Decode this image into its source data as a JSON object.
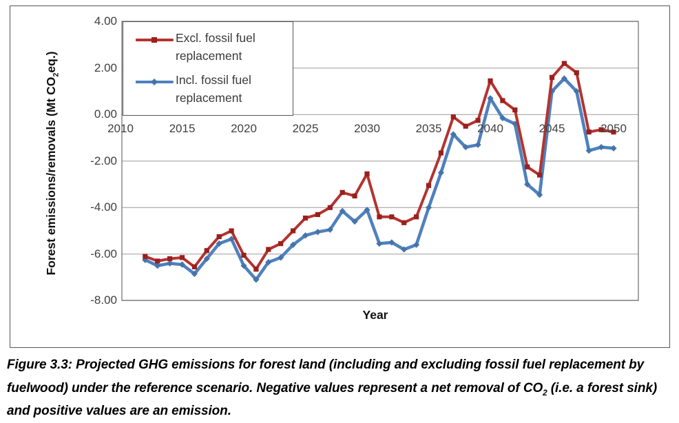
{
  "caption": {
    "pre": "Figure 3.3: Projected GHG emissions for forest land (including and excluding fossil fuel replacement by fuelwood) under the reference scenario. Negative values represent a net removal of CO",
    "sub": "2",
    "post": " (i.e. a forest sink) and positive values are an emission."
  },
  "chart_data": {
    "type": "line",
    "title": "",
    "xlabel": "Year",
    "ylabel_parts": {
      "pre": "Forest emissions/removals (Mt CO",
      "sub": "2",
      "post": "eq.)"
    },
    "xlim": [
      2010,
      2050
    ],
    "ylim": [
      -8,
      4
    ],
    "grid": "horizontal",
    "legend_position": "top-left-inside",
    "yticks": {
      "values": [
        4,
        2,
        0,
        -2,
        -4,
        -6,
        -8
      ],
      "labels": [
        "4.00",
        "2.00",
        "0.00",
        "-2.00",
        "-4.00",
        "-6.00",
        "-8.00"
      ]
    },
    "xticks": {
      "values": [
        2010,
        2015,
        2020,
        2025,
        2030,
        2035,
        2040,
        2045,
        2050
      ],
      "labels": [
        "2010",
        "2015",
        "2020",
        "2025",
        "2030",
        "2035",
        "2040",
        "2045",
        "2050"
      ]
    },
    "x": [
      2012,
      2013,
      2014,
      2015,
      2016,
      2017,
      2018,
      2019,
      2020,
      2021,
      2022,
      2023,
      2024,
      2025,
      2026,
      2027,
      2028,
      2029,
      2030,
      2031,
      2032,
      2033,
      2034,
      2035,
      2036,
      2037,
      2038,
      2039,
      2040,
      2041,
      2042,
      2043,
      2044,
      2045,
      2046,
      2047,
      2048,
      2049,
      2050
    ],
    "series": [
      {
        "name": "Excl. fossil fuel replacement",
        "color": "#b43330",
        "marker_color": "#9a201c",
        "marker": "square",
        "values": [
          -6.1,
          -6.3,
          -6.2,
          -6.15,
          -6.55,
          -5.85,
          -5.25,
          -5.0,
          -6.05,
          -6.65,
          -5.8,
          -5.55,
          -5.0,
          -4.45,
          -4.3,
          -4.0,
          -3.35,
          -3.5,
          -2.55,
          -4.4,
          -4.4,
          -4.65,
          -4.4,
          -3.05,
          -1.65,
          -0.1,
          -0.5,
          -0.25,
          1.45,
          0.6,
          0.2,
          -2.25,
          -2.6,
          1.6,
          2.2,
          1.8,
          -0.75,
          -0.65,
          -0.75
        ]
      },
      {
        "name": "Incl. fossil fuel replacement",
        "color": "#4f81bd",
        "marker_color": "#4574ab",
        "marker": "diamond",
        "values": [
          -6.25,
          -6.5,
          -6.4,
          -6.45,
          -6.85,
          -6.2,
          -5.55,
          -5.35,
          -6.5,
          -7.1,
          -6.35,
          -6.15,
          -5.6,
          -5.2,
          -5.05,
          -4.95,
          -4.15,
          -4.6,
          -4.1,
          -5.55,
          -5.5,
          -5.8,
          -5.6,
          -4.0,
          -2.5,
          -0.85,
          -1.4,
          -1.3,
          0.7,
          -0.15,
          -0.4,
          -3.0,
          -3.45,
          1.0,
          1.55,
          1.0,
          -1.55,
          -1.4,
          -1.45
        ]
      }
    ],
    "colors": {
      "gridline": "#a6a6a6",
      "plot_border": "#7f7f7f",
      "tick_text": "#3f3f3f"
    }
  }
}
